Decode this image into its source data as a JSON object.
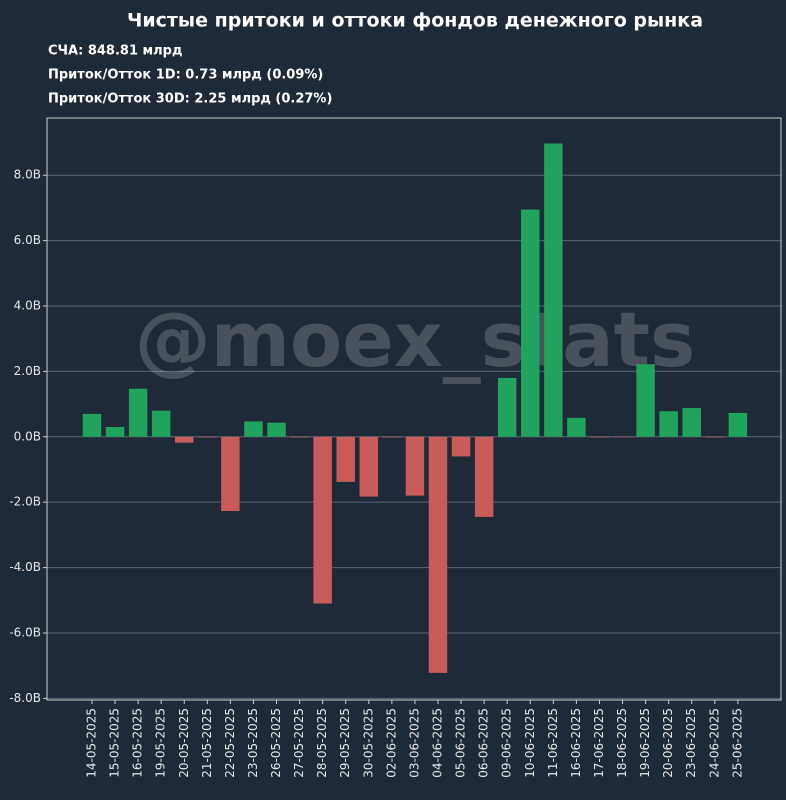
{
  "chart_data": {
    "type": "bar",
    "title": "Чистые притоки и оттоки фондов денежного рынка",
    "info_lines": [
      "СЧА: 848.81 млрд",
      "Приток/Отток 1D: 0.73 млрд (0.09%)",
      "Приток/Отток 30D: 2.25 млрд (0.27%)"
    ],
    "watermark": "@moex_stats",
    "categories": [
      "14-05-2025",
      "15-05-2025",
      "16-05-2025",
      "19-05-2025",
      "20-05-2025",
      "21-05-2025",
      "22-05-2025",
      "23-05-2025",
      "26-05-2025",
      "27-05-2025",
      "28-05-2025",
      "29-05-2025",
      "30-05-2025",
      "02-06-2025",
      "03-06-2025",
      "04-06-2025",
      "05-06-2025",
      "06-06-2025",
      "09-06-2025",
      "10-06-2025",
      "11-06-2025",
      "16-06-2025",
      "17-06-2025",
      "18-06-2025",
      "19-06-2025",
      "20-06-2025",
      "23-06-2025",
      "24-06-2025",
      "25-06-2025"
    ],
    "values": [
      0.7,
      0.3,
      1.47,
      0.8,
      -0.18,
      -0.02,
      -2.27,
      0.47,
      0.43,
      -0.02,
      -5.1,
      -1.38,
      -1.83,
      -0.02,
      -1.8,
      -7.22,
      -0.6,
      -2.45,
      1.8,
      6.95,
      8.97,
      0.58,
      -0.02,
      -0.01,
      2.22,
      0.78,
      0.88,
      -0.02,
      0.73
    ],
    "positive_color": "#20a35c",
    "negative_color": "#c95b5a",
    "ylim": [
      -8.05,
      9.75
    ],
    "yticks": [
      {
        "value": -8,
        "label": "-8.0B"
      },
      {
        "value": -6,
        "label": "-6.0B"
      },
      {
        "value": -4,
        "label": "-4.0B"
      },
      {
        "value": -2,
        "label": "-2.0B"
      },
      {
        "value": 0,
        "label": "0.0B"
      },
      {
        "value": 2,
        "label": "2.0B"
      },
      {
        "value": 4,
        "label": "4.0B"
      },
      {
        "value": 6,
        "label": "6.0B"
      },
      {
        "value": 8,
        "label": "8.0B"
      }
    ],
    "grid": true
  }
}
